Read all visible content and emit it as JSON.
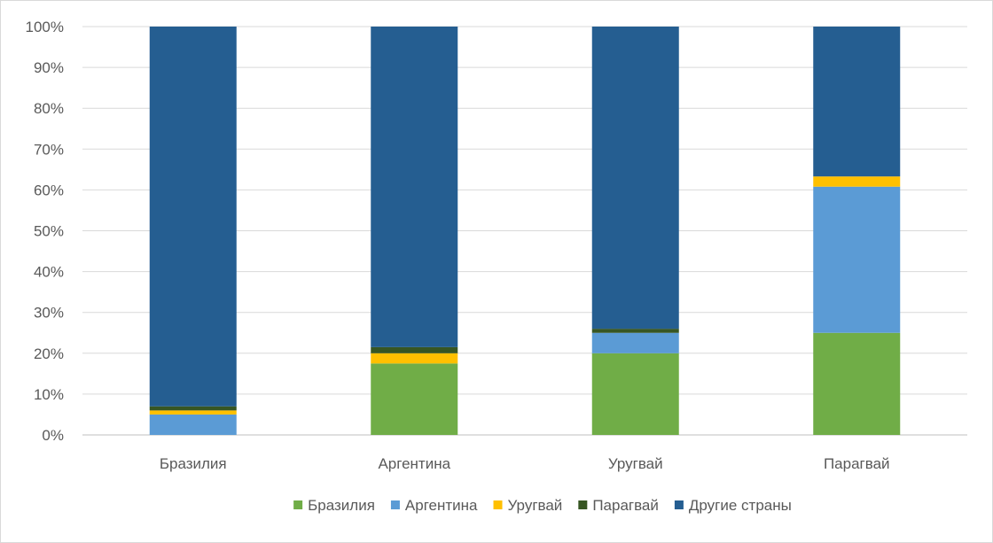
{
  "chart_data": {
    "type": "bar",
    "stacked": true,
    "percent": true,
    "categories": [
      "Бразилия",
      "Аргентина",
      "Уругвай",
      "Парагвай"
    ],
    "series": [
      {
        "name": "Бразилия",
        "color": "#70ad47",
        "values": [
          0.0,
          17.5,
          20.0,
          25.0
        ]
      },
      {
        "name": "Аргентина",
        "color": "#5b9bd5",
        "values": [
          5.0,
          0.0,
          5.0,
          35.8
        ]
      },
      {
        "name": "Уругвай",
        "color": "#ffc000",
        "values": [
          1.0,
          2.5,
          0.0,
          2.5
        ]
      },
      {
        "name": "Парагвай",
        "color": "#375623",
        "values": [
          1.0,
          1.5,
          1.0,
          0.0
        ]
      },
      {
        "name": "Другие страны",
        "color": "#255e91",
        "values": [
          93.0,
          78.5,
          74.0,
          36.7
        ]
      }
    ],
    "ylim": [
      0,
      100
    ],
    "yticks": [
      "0%",
      "10%",
      "20%",
      "30%",
      "40%",
      "50%",
      "60%",
      "70%",
      "80%",
      "90%",
      "100%"
    ],
    "grid": true,
    "legend_position": "bottom"
  }
}
